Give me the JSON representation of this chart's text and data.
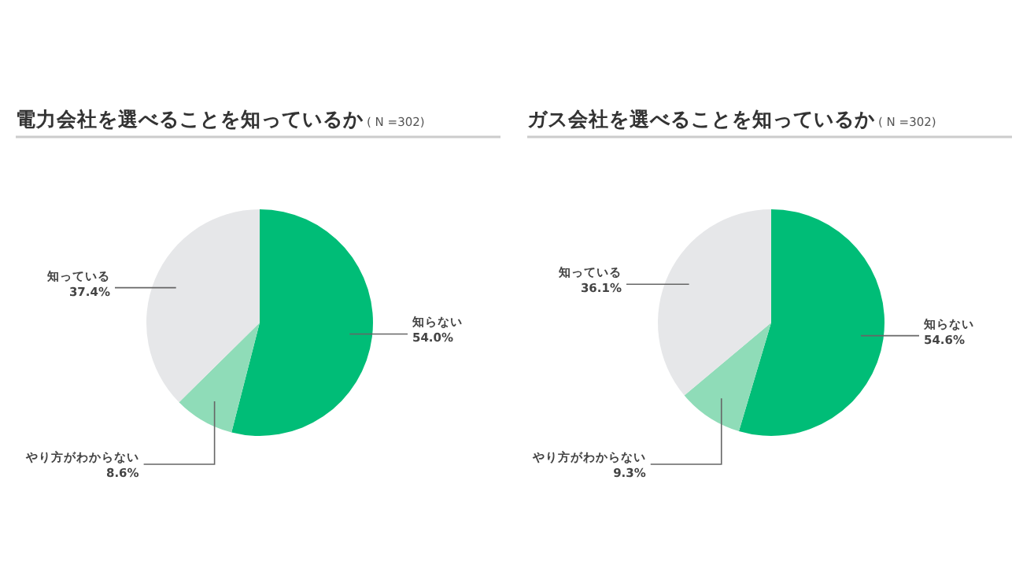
{
  "chart_data": [
    {
      "type": "pie",
      "title": "電力会社を選べることを知っているか",
      "subtitle": "( N =302)",
      "categories": [
        "知らない",
        "やり方がわからない",
        "知っている"
      ],
      "values": [
        54.0,
        8.6,
        37.4
      ],
      "colors": [
        "#00bd77",
        "#8fdcb8",
        "#e6e7e9"
      ],
      "value_labels": [
        "54.0%",
        "8.6%",
        "37.4%"
      ]
    },
    {
      "type": "pie",
      "title": "ガス会社を選べることを知っているか",
      "subtitle": "( N =302)",
      "categories": [
        "知らない",
        "やり方がわからない",
        "知っている"
      ],
      "values": [
        54.6,
        9.3,
        36.1
      ],
      "colors": [
        "#00bd77",
        "#8fdcb8",
        "#e6e7e9"
      ],
      "value_labels": [
        "54.6%",
        "9.3%",
        "36.1%"
      ]
    }
  ]
}
